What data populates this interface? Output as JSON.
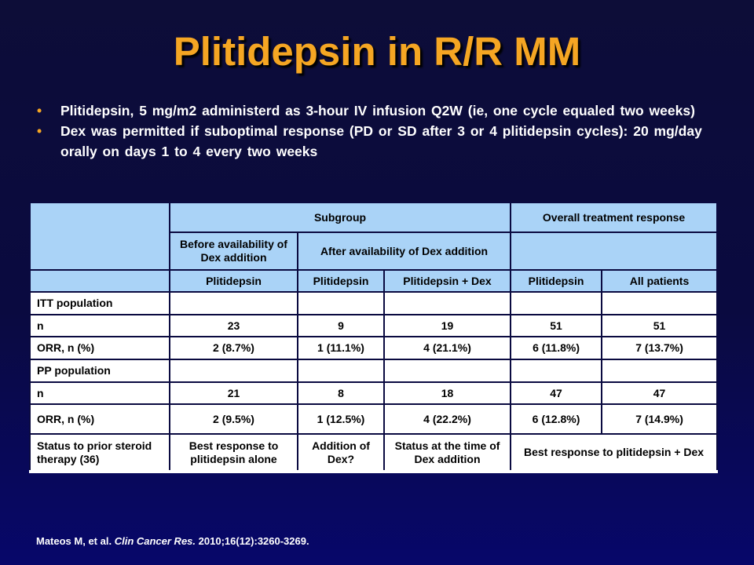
{
  "slide": {
    "title": "Plitidepsin in R/R MM",
    "bullets": [
      "Plitidepsin, 5 mg/m2 administerd as 3-hour IV infusion Q2W (ie, one cycle equaled two weeks)",
      "Dex was permitted if suboptimal response (PD or SD after 3 or 4 plitidepsin cycles): 20 mg/day orally on days 1 to 4 every two weeks"
    ],
    "bullet_marker": "•"
  },
  "table": {
    "header1": {
      "blank": "",
      "subgroup": "Subgroup",
      "overall": "Overall treatment response"
    },
    "header2": {
      "before": "Before availability of Dex addition",
      "after": "After availability of Dex addition"
    },
    "header3": {
      "blank": "",
      "cols": [
        "Plitidepsin",
        "Plitidepsin",
        "Plitidepsin + Dex",
        "Plitidepsin",
        "All patients"
      ]
    },
    "rows": [
      {
        "label": "ITT population",
        "cells": [
          "",
          "",
          "",
          "",
          ""
        ]
      },
      {
        "label": "n",
        "cells": [
          "23",
          "9",
          "19",
          "51",
          "51"
        ]
      },
      {
        "label": "ORR, n (%)",
        "cells": [
          "2 (8.7%)",
          "1 (11.1%)",
          "4 (21.1%)",
          "6 (11.8%)",
          "7 (13.7%)"
        ]
      },
      {
        "label": "PP population",
        "cells": [
          "",
          "",
          "",
          "",
          ""
        ]
      },
      {
        "label": "n",
        "cells": [
          "21",
          "8",
          "18",
          "47",
          "47"
        ]
      },
      {
        "label": "ORR, n (%)",
        "cells": [
          "2 (9.5%)",
          "1 (12.5%)",
          "4 (22.2%)",
          "6 (12.8%)",
          "7 (14.9%)"
        ]
      }
    ],
    "last_row": {
      "label": "Status to prior steroid therapy (36)",
      "c1": "Best response to plitidepsin alone",
      "c2": "Addition of Dex?",
      "c3": "Status at the time of Dex addition",
      "c4": "Best response to plitidepsin + Dex"
    }
  },
  "citation": {
    "authors": "Mateos M, et al.",
    "journal": "Clin Cancer Res.",
    "details": "2010;16(12):3260-3269."
  },
  "colors": {
    "title": "#f5a623",
    "bullet": "#f5a623",
    "header_fill": "#aad3f7",
    "background": "#0a0a40"
  }
}
